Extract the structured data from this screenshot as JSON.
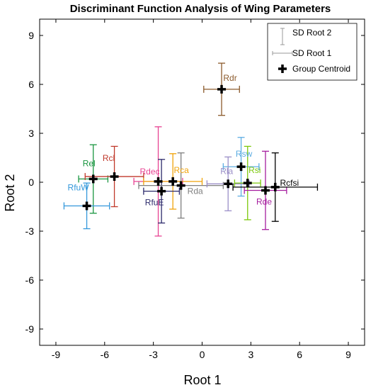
{
  "chart_data": {
    "type": "scatter",
    "title": "Discriminant Function Analysis of Wing Parameters",
    "xlabel": "Root 1",
    "ylabel": "Root 2",
    "xlim": [
      -10,
      10
    ],
    "ylim": [
      -10,
      10
    ],
    "xticks": [
      "-9",
      "-6",
      "-3",
      "0",
      "3",
      "6",
      "9"
    ],
    "yticks": [
      "9",
      "6",
      "3",
      "0",
      "-3",
      "-6",
      "-9"
    ],
    "xtick_values": [
      -9,
      -6,
      -3,
      0,
      3,
      6,
      9
    ],
    "ytick_values": [
      9,
      6,
      3,
      0,
      -3,
      -6,
      -9
    ],
    "grid": false,
    "legend_position": "top-right",
    "legend": {
      "sd_root2": "SD Root 2",
      "sd_root1": "SD Root 1",
      "centroid": "Group Centroid"
    },
    "points": [
      {
        "label": "Rel",
        "x": -6.7,
        "y": 0.2,
        "sd1": 0.9,
        "sd2": 2.1,
        "color": "#1a9641"
      },
      {
        "label": "Rcl",
        "x": -5.4,
        "y": 0.35,
        "sd1": 1.8,
        "sd2": 1.85,
        "color": "#c0392b"
      },
      {
        "label": "RfuW",
        "x": -7.1,
        "y": -1.45,
        "sd1": 1.4,
        "sd2": 1.4,
        "color": "#3498db"
      },
      {
        "label": "Rdec",
        "x": -2.7,
        "y": 0.05,
        "sd1": 1.5,
        "sd2": 3.35,
        "color": "#e84393"
      },
      {
        "label": "Rca",
        "x": -1.8,
        "y": 0.05,
        "sd1": 1.8,
        "sd2": 1.7,
        "color": "#f0a30a"
      },
      {
        "label": "RfuE",
        "x": -2.5,
        "y": -0.55,
        "sd1": 1.1,
        "sd2": 1.95,
        "color": "#2c2a6b"
      },
      {
        "label": "Rda",
        "x": -1.3,
        "y": -0.2,
        "sd1": 2.6,
        "sd2": 2.0,
        "color": "#7f7f7f"
      },
      {
        "label": "Rdr",
        "x": 1.2,
        "y": 5.7,
        "sd1": 1.1,
        "sd2": 1.6,
        "color": "#8b5a2b"
      },
      {
        "label": "Rsw",
        "x": 2.4,
        "y": 0.95,
        "sd1": 1.1,
        "sd2": 1.8,
        "color": "#5dade2"
      },
      {
        "label": "Rla",
        "x": 1.6,
        "y": -0.1,
        "sd1": 1.3,
        "sd2": 1.65,
        "color": "#9b8fc8"
      },
      {
        "label": "Rsi",
        "x": 2.8,
        "y": -0.05,
        "sd1": 0.8,
        "sd2": 2.25,
        "color": "#7cc80a"
      },
      {
        "label": "Rde",
        "x": 3.9,
        "y": -0.5,
        "sd1": 1.3,
        "sd2": 2.4,
        "color": "#a61e9f"
      },
      {
        "label": "Rcfsi",
        "x": 4.5,
        "y": -0.3,
        "sd1": 2.6,
        "sd2": 2.1,
        "color": "#000000"
      }
    ]
  }
}
